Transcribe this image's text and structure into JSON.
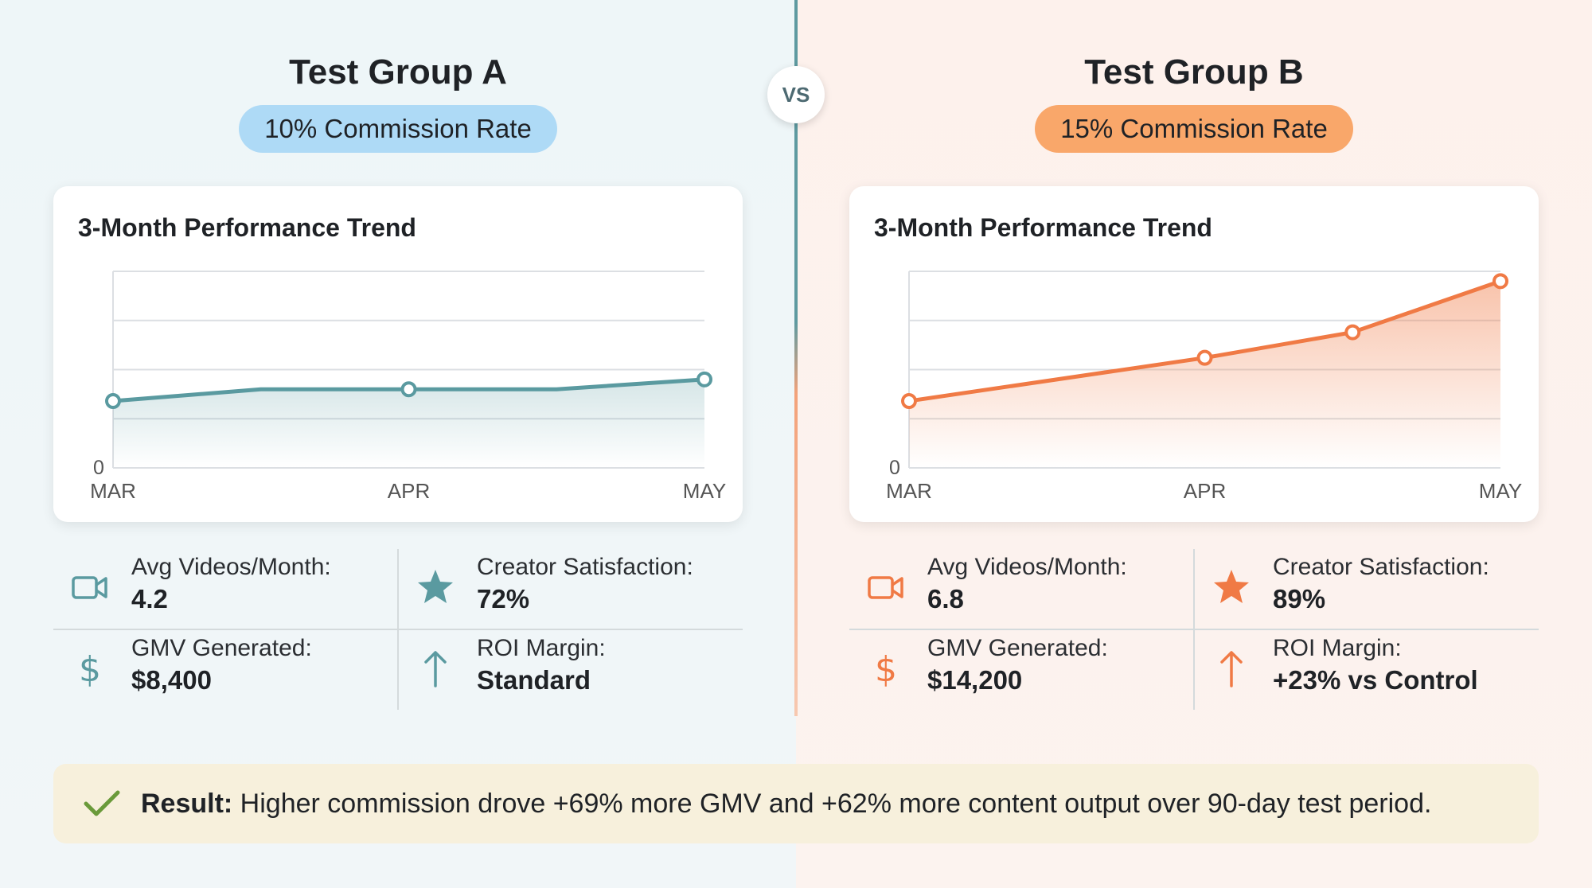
{
  "vs_label": "VS",
  "groups": [
    {
      "title": "Test Group A",
      "badge": "10% Commission Rate",
      "accent": "#5a9aa0",
      "badge_color": "#aedaf6",
      "card_title": "3-Month Performance Trend",
      "stats": [
        {
          "icon": "video-camera-icon",
          "label": "Avg Videos/Month:",
          "value": "4.2"
        },
        {
          "icon": "star-icon",
          "label": "Creator Satisfaction:",
          "value": "72%"
        },
        {
          "icon": "dollar-icon",
          "label": "GMV Generated:",
          "value": "$8,400"
        },
        {
          "icon": "arrow-up-icon",
          "label": "ROI Margin:",
          "value": "Standard"
        }
      ]
    },
    {
      "title": "Test Group B",
      "badge": "15% Commission Rate",
      "accent": "#f07a45",
      "badge_color": "#f9a76a",
      "card_title": "3-Month Performance Trend",
      "stats": [
        {
          "icon": "video-camera-icon",
          "label": "Avg Videos/Month:",
          "value": "6.8"
        },
        {
          "icon": "star-icon",
          "label": "Creator Satisfaction:",
          "value": "89%"
        },
        {
          "icon": "dollar-icon",
          "label": "GMV Generated:",
          "value": "$14,200"
        },
        {
          "icon": "arrow-up-icon",
          "label": "ROI Margin:",
          "value": "+23% vs Control"
        }
      ]
    }
  ],
  "chart_data": [
    {
      "type": "area",
      "title": "3-Month Performance Trend",
      "categories": [
        "MAR",
        "APR",
        "MAY"
      ],
      "x": [
        0,
        0.5,
        1,
        1.5,
        2
      ],
      "values": [
        34,
        40,
        40,
        40,
        45
      ],
      "markers_at": [
        0,
        2,
        4
      ],
      "ylim": [
        0,
        100
      ],
      "y_tick_labels": [
        "0"
      ],
      "grid": true,
      "color": "#5a9aa0"
    },
    {
      "type": "area",
      "title": "3-Month Performance Trend",
      "categories": [
        "MAR",
        "APR",
        "MAY"
      ],
      "x": [
        0,
        1,
        1.5,
        2
      ],
      "values": [
        34,
        56,
        69,
        95
      ],
      "markers_at": [
        0,
        1,
        2,
        3
      ],
      "ylim": [
        0,
        100
      ],
      "y_tick_labels": [
        "0"
      ],
      "grid": true,
      "color": "#f07a45"
    }
  ],
  "result": {
    "icon": "checkmark-icon",
    "bold": "Result:",
    "text": " Higher commission drove +69% more GMV and +62% more content output over 90-day test period.",
    "color": "#6a9a3a"
  }
}
